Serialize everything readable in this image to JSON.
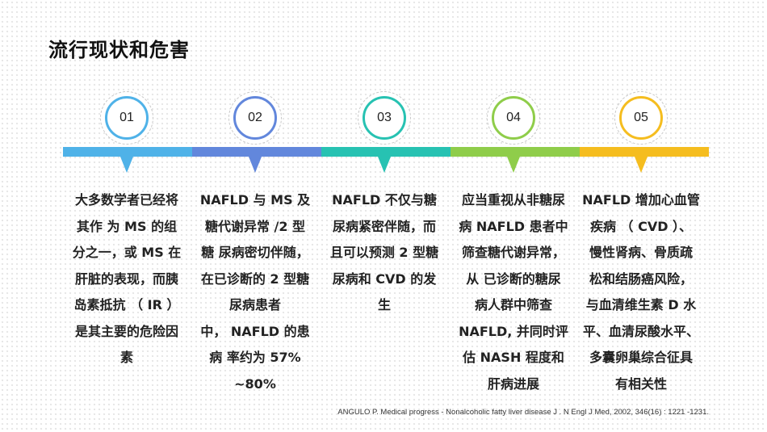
{
  "title": "流行现状和危害",
  "steps": [
    {
      "number": "01",
      "color": "#4fb2e8",
      "lines": [
        "大多数学者已经将",
        "其作 为 MS 的组",
        "分之一，或 MS 在",
        "肝脏的表现，而胰",
        "岛素抵抗 （ IR ）",
        "是其主要的危险因",
        "素"
      ]
    },
    {
      "number": "02",
      "color": "#6287dc",
      "lines": [
        "NAFLD 与 MS 及",
        "糖代谢异常 /2 型",
        "糖 尿病密切伴随，",
        "在已诊断的 2 型糖",
        "尿病患者",
        "中， NAFLD 的患",
        "病 率约为 57%",
        "~80%"
      ]
    },
    {
      "number": "03",
      "color": "#27c2b2",
      "lines": [
        "NAFLD 不仅与糖",
        "尿病紧密伴随，而",
        "且可以预测 2 型糖",
        "尿病和 CVD 的发",
        "生"
      ]
    },
    {
      "number": "04",
      "color": "#8fcd4a",
      "lines": [
        "应当重视从非糖尿",
        "病 NAFLD 患者中",
        "筛查糖代谢异常，",
        "从 已诊断的糖尿",
        "病人群中筛查",
        "NAFLD, 并同时评",
        "估 NASH 程度和",
        "肝病进展"
      ]
    },
    {
      "number": "05",
      "color": "#f5bd1f",
      "lines": [
        "NAFLD 增加心血管",
        "疾病 （ CVD ）、",
        "慢性肾病、骨质疏",
        "松和结肠癌风险，",
        "与血清维生素 D 水",
        "平、血清尿酸水平、",
        "多囊卵巢综合征具",
        "有相关性"
      ]
    }
  ],
  "citation": "ANGULO P. Medical progress - Nonalcoholic fatty liver disease J . N Engl J Med, 2002, 346(16) : 1221 -1231."
}
